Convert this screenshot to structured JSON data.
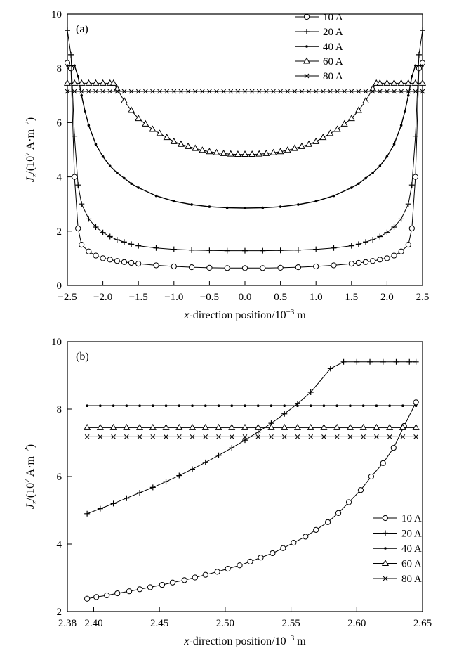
{
  "chart_data": [
    {
      "type": "line",
      "panel_label": "(a)",
      "xlabel": "x-direction position/10⁻³ m",
      "ylabel": "J_z/(10⁷ A·m⁻²)",
      "xlim": [
        -2.5,
        2.5
      ],
      "ylim": [
        0,
        10
      ],
      "xticks": [
        "-2.5",
        "-2.0",
        "-1.5",
        "-1.0",
        "-0.5",
        "0.0",
        "0.5",
        "1.0",
        "1.5",
        "2.0",
        "2.5"
      ],
      "yticks": [
        "0",
        "2",
        "4",
        "6",
        "8",
        "10"
      ],
      "grid": false,
      "legend_position": "top-right",
      "series": [
        {
          "name": "10 A",
          "marker": "circle",
          "x": [
            -2.5,
            -2.45,
            -2.4,
            -2.35,
            -2.3,
            -2.2,
            -2.1,
            -2.0,
            -1.9,
            -1.8,
            -1.7,
            -1.6,
            -1.5,
            -1.25,
            -1.0,
            -0.75,
            -0.5,
            -0.25,
            0.0,
            0.25,
            0.5,
            0.75,
            1.0,
            1.25,
            1.5,
            1.6,
            1.7,
            1.8,
            1.9,
            2.0,
            2.1,
            2.2,
            2.3,
            2.35,
            2.4,
            2.45,
            2.5
          ],
          "y": [
            8.2,
            8.0,
            4.0,
            2.1,
            1.5,
            1.25,
            1.1,
            1.0,
            0.95,
            0.9,
            0.86,
            0.83,
            0.8,
            0.74,
            0.7,
            0.67,
            0.65,
            0.64,
            0.64,
            0.64,
            0.65,
            0.67,
            0.7,
            0.74,
            0.8,
            0.83,
            0.86,
            0.9,
            0.95,
            1.0,
            1.1,
            1.25,
            1.5,
            2.1,
            4.0,
            8.0,
            8.2
          ]
        },
        {
          "name": "20 A",
          "marker": "plus",
          "x": [
            -2.5,
            -2.45,
            -2.4,
            -2.35,
            -2.3,
            -2.2,
            -2.1,
            -2.0,
            -1.9,
            -1.8,
            -1.7,
            -1.6,
            -1.5,
            -1.25,
            -1.0,
            -0.75,
            -0.5,
            -0.25,
            0.0,
            0.25,
            0.5,
            0.75,
            1.0,
            1.25,
            1.5,
            1.6,
            1.7,
            1.8,
            1.9,
            2.0,
            2.1,
            2.2,
            2.3,
            2.35,
            2.4,
            2.45,
            2.5
          ],
          "y": [
            9.4,
            8.5,
            5.5,
            3.7,
            3.0,
            2.45,
            2.15,
            1.95,
            1.8,
            1.68,
            1.6,
            1.52,
            1.46,
            1.38,
            1.33,
            1.3,
            1.29,
            1.28,
            1.28,
            1.28,
            1.29,
            1.3,
            1.33,
            1.38,
            1.46,
            1.52,
            1.6,
            1.68,
            1.8,
            1.95,
            2.15,
            2.45,
            3.0,
            3.7,
            5.5,
            8.5,
            9.4
          ]
        },
        {
          "name": "40 A",
          "marker": "dot",
          "x": [
            -2.5,
            -2.4,
            -2.35,
            -2.3,
            -2.25,
            -2.2,
            -2.1,
            -2.0,
            -1.9,
            -1.8,
            -1.7,
            -1.6,
            -1.5,
            -1.25,
            -1.0,
            -0.75,
            -0.5,
            -0.25,
            0.0,
            0.25,
            0.5,
            0.75,
            1.0,
            1.25,
            1.5,
            1.6,
            1.7,
            1.8,
            1.9,
            2.0,
            2.1,
            2.2,
            2.25,
            2.3,
            2.35,
            2.4,
            2.5
          ],
          "y": [
            8.1,
            8.1,
            7.7,
            7.0,
            6.4,
            5.9,
            5.2,
            4.75,
            4.4,
            4.15,
            3.95,
            3.75,
            3.6,
            3.3,
            3.1,
            2.98,
            2.9,
            2.86,
            2.85,
            2.86,
            2.9,
            2.98,
            3.1,
            3.3,
            3.6,
            3.75,
            3.95,
            4.15,
            4.4,
            4.75,
            5.2,
            5.9,
            6.4,
            7.0,
            7.7,
            8.1,
            8.1
          ]
        },
        {
          "name": "60 A",
          "marker": "triangle",
          "x": [
            -2.5,
            -2.4,
            -2.3,
            -2.2,
            -2.1,
            -2.0,
            -1.9,
            -1.85,
            -1.8,
            -1.7,
            -1.6,
            -1.5,
            -1.4,
            -1.3,
            -1.2,
            -1.1,
            -1.0,
            -0.9,
            -0.8,
            -0.7,
            -0.6,
            -0.5,
            -0.4,
            -0.3,
            -0.2,
            -0.1,
            0.0,
            0.1,
            0.2,
            0.3,
            0.4,
            0.5,
            0.6,
            0.7,
            0.8,
            0.9,
            1.0,
            1.1,
            1.2,
            1.3,
            1.4,
            1.5,
            1.6,
            1.7,
            1.8,
            1.85,
            1.9,
            2.0,
            2.1,
            2.2,
            2.3,
            2.4,
            2.5
          ],
          "y": [
            7.45,
            7.45,
            7.45,
            7.45,
            7.45,
            7.45,
            7.45,
            7.45,
            7.25,
            6.8,
            6.45,
            6.15,
            5.95,
            5.75,
            5.6,
            5.45,
            5.3,
            5.2,
            5.12,
            5.05,
            4.98,
            4.93,
            4.89,
            4.86,
            4.84,
            4.83,
            4.83,
            4.83,
            4.84,
            4.86,
            4.89,
            4.93,
            4.98,
            5.05,
            5.12,
            5.2,
            5.3,
            5.45,
            5.6,
            5.75,
            5.95,
            6.15,
            6.45,
            6.8,
            7.25,
            7.45,
            7.45,
            7.45,
            7.45,
            7.45,
            7.45,
            7.45,
            7.45
          ]
        },
        {
          "name": "80 A",
          "marker": "x",
          "x": [
            -2.5,
            -2.4,
            -2.3,
            -2.2,
            -2.1,
            -2.0,
            -1.9,
            -1.8,
            -1.7,
            -1.6,
            -1.5,
            -1.4,
            -1.3,
            -1.2,
            -1.1,
            -1.0,
            -0.9,
            -0.8,
            -0.7,
            -0.6,
            -0.5,
            -0.4,
            -0.3,
            -0.2,
            -0.1,
            0.0,
            0.1,
            0.2,
            0.3,
            0.4,
            0.5,
            0.6,
            0.7,
            0.8,
            0.9,
            1.0,
            1.1,
            1.2,
            1.3,
            1.4,
            1.5,
            1.6,
            1.7,
            1.8,
            1.9,
            2.0,
            2.1,
            2.2,
            2.3,
            2.4,
            2.5
          ],
          "y": [
            7.15,
            7.15,
            7.15,
            7.15,
            7.15,
            7.15,
            7.15,
            7.15,
            7.15,
            7.15,
            7.15,
            7.15,
            7.15,
            7.15,
            7.15,
            7.15,
            7.15,
            7.15,
            7.15,
            7.15,
            7.15,
            7.15,
            7.15,
            7.15,
            7.15,
            7.15,
            7.15,
            7.15,
            7.15,
            7.15,
            7.15,
            7.15,
            7.15,
            7.15,
            7.15,
            7.15,
            7.15,
            7.15,
            7.15,
            7.15,
            7.15,
            7.15,
            7.15,
            7.15,
            7.15,
            7.15,
            7.15,
            7.15,
            7.15,
            7.15,
            7.15
          ]
        }
      ]
    },
    {
      "type": "line",
      "panel_label": "(b)",
      "xlabel": "x-direction position/10⁻³ m",
      "ylabel": "J_z/(10⁷ A·m⁻²)",
      "xlim": [
        2.38,
        2.65
      ],
      "ylim": [
        2,
        10
      ],
      "xticks": [
        "2.38",
        "2.40",
        "2.45",
        "2.50",
        "2.55",
        "2.60",
        "2.65"
      ],
      "yticks": [
        "2",
        "4",
        "6",
        "8",
        "10"
      ],
      "grid": false,
      "legend_position": "bottom-right",
      "series": [
        {
          "name": "10 A",
          "marker": "circle",
          "x": [
            2.395,
            2.402,
            2.41,
            2.418,
            2.427,
            2.435,
            2.443,
            2.452,
            2.46,
            2.469,
            2.477,
            2.485,
            2.494,
            2.502,
            2.511,
            2.519,
            2.527,
            2.536,
            2.544,
            2.552,
            2.561,
            2.569,
            2.578,
            2.586,
            2.594,
            2.603,
            2.611,
            2.62,
            2.628,
            2.636,
            2.645
          ],
          "y": [
            2.38,
            2.43,
            2.48,
            2.54,
            2.6,
            2.66,
            2.72,
            2.79,
            2.86,
            2.93,
            3.01,
            3.09,
            3.18,
            3.27,
            3.37,
            3.48,
            3.6,
            3.73,
            3.88,
            4.04,
            4.22,
            4.42,
            4.65,
            4.92,
            5.24,
            5.6,
            6.0,
            6.4,
            6.85,
            7.5,
            8.2
          ]
        },
        {
          "name": "20 A",
          "marker": "plus",
          "x": [
            2.395,
            2.405,
            2.415,
            2.425,
            2.435,
            2.445,
            2.455,
            2.465,
            2.475,
            2.485,
            2.495,
            2.505,
            2.515,
            2.525,
            2.535,
            2.545,
            2.555,
            2.565,
            2.58,
            2.59,
            2.6,
            2.61,
            2.62,
            2.63,
            2.64,
            2.645
          ],
          "y": [
            4.9,
            5.05,
            5.2,
            5.36,
            5.52,
            5.68,
            5.85,
            6.03,
            6.22,
            6.42,
            6.63,
            6.85,
            7.08,
            7.32,
            7.58,
            7.86,
            8.16,
            8.5,
            9.2,
            9.4,
            9.4,
            9.4,
            9.4,
            9.4,
            9.4,
            9.4
          ]
        },
        {
          "name": "40 A",
          "marker": "dot",
          "x": [
            2.395,
            2.405,
            2.415,
            2.425,
            2.435,
            2.445,
            2.455,
            2.465,
            2.475,
            2.485,
            2.495,
            2.505,
            2.515,
            2.525,
            2.535,
            2.545,
            2.555,
            2.565,
            2.575,
            2.585,
            2.595,
            2.605,
            2.615,
            2.625,
            2.635,
            2.645
          ],
          "y": [
            8.1,
            8.1,
            8.1,
            8.1,
            8.1,
            8.1,
            8.1,
            8.1,
            8.1,
            8.1,
            8.1,
            8.1,
            8.1,
            8.1,
            8.1,
            8.1,
            8.1,
            8.1,
            8.1,
            8.1,
            8.1,
            8.1,
            8.1,
            8.1,
            8.1,
            8.1
          ]
        },
        {
          "name": "60 A",
          "marker": "triangle",
          "x": [
            2.395,
            2.405,
            2.415,
            2.425,
            2.435,
            2.445,
            2.455,
            2.465,
            2.475,
            2.485,
            2.495,
            2.505,
            2.515,
            2.525,
            2.535,
            2.545,
            2.555,
            2.565,
            2.575,
            2.585,
            2.595,
            2.605,
            2.615,
            2.625,
            2.635,
            2.645
          ],
          "y": [
            7.45,
            7.45,
            7.45,
            7.45,
            7.45,
            7.45,
            7.45,
            7.45,
            7.45,
            7.45,
            7.45,
            7.45,
            7.45,
            7.45,
            7.45,
            7.45,
            7.45,
            7.45,
            7.45,
            7.45,
            7.45,
            7.45,
            7.45,
            7.45,
            7.45,
            7.45
          ]
        },
        {
          "name": "80 A",
          "marker": "x",
          "x": [
            2.395,
            2.405,
            2.415,
            2.425,
            2.435,
            2.445,
            2.455,
            2.465,
            2.475,
            2.485,
            2.495,
            2.505,
            2.515,
            2.525,
            2.535,
            2.545,
            2.555,
            2.565,
            2.575,
            2.585,
            2.595,
            2.605,
            2.615,
            2.625,
            2.635,
            2.645
          ],
          "y": [
            7.18,
            7.18,
            7.18,
            7.18,
            7.18,
            7.18,
            7.18,
            7.18,
            7.18,
            7.18,
            7.18,
            7.18,
            7.18,
            7.18,
            7.18,
            7.18,
            7.18,
            7.18,
            7.18,
            7.18,
            7.18,
            7.18,
            7.18,
            7.18,
            7.18,
            7.18
          ]
        }
      ]
    }
  ]
}
